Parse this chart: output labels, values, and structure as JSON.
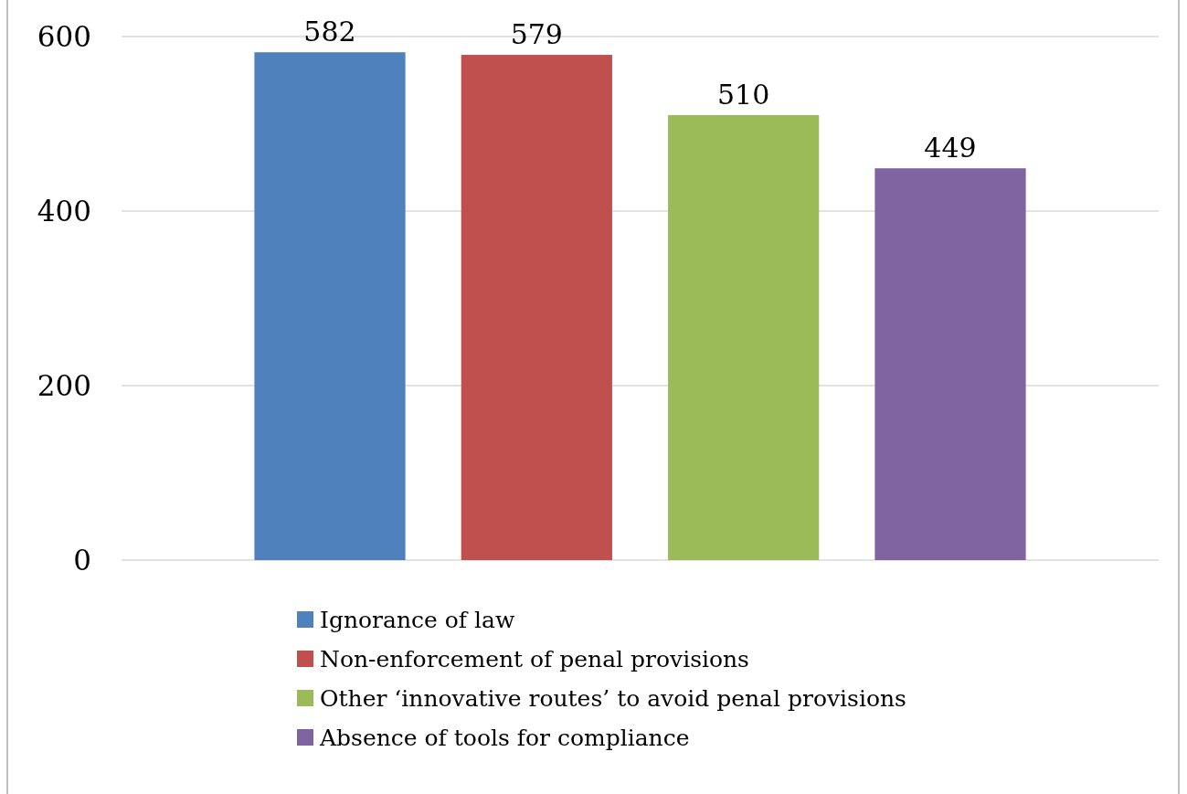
{
  "chart_data": {
    "type": "bar",
    "categories": [
      null
    ],
    "series": [
      {
        "name": "Ignorance of law",
        "color": "#4f81bd",
        "values": [
          582
        ]
      },
      {
        "name": "Non-enforcement of penal provisions",
        "color": "#c0504d",
        "values": [
          579
        ]
      },
      {
        "name": "Other ‘innovative routes’ to avoid penal provisions",
        "color": "#9bbb59",
        "values": [
          510
        ]
      },
      {
        "name": "Absence of tools for compliance",
        "color": "#8064a2",
        "values": [
          449
        ]
      }
    ],
    "ylim": [
      0,
      600
    ],
    "yticks": [
      0,
      200,
      400,
      600
    ],
    "grid": "y",
    "data_labels": true,
    "legend": "bottom"
  }
}
